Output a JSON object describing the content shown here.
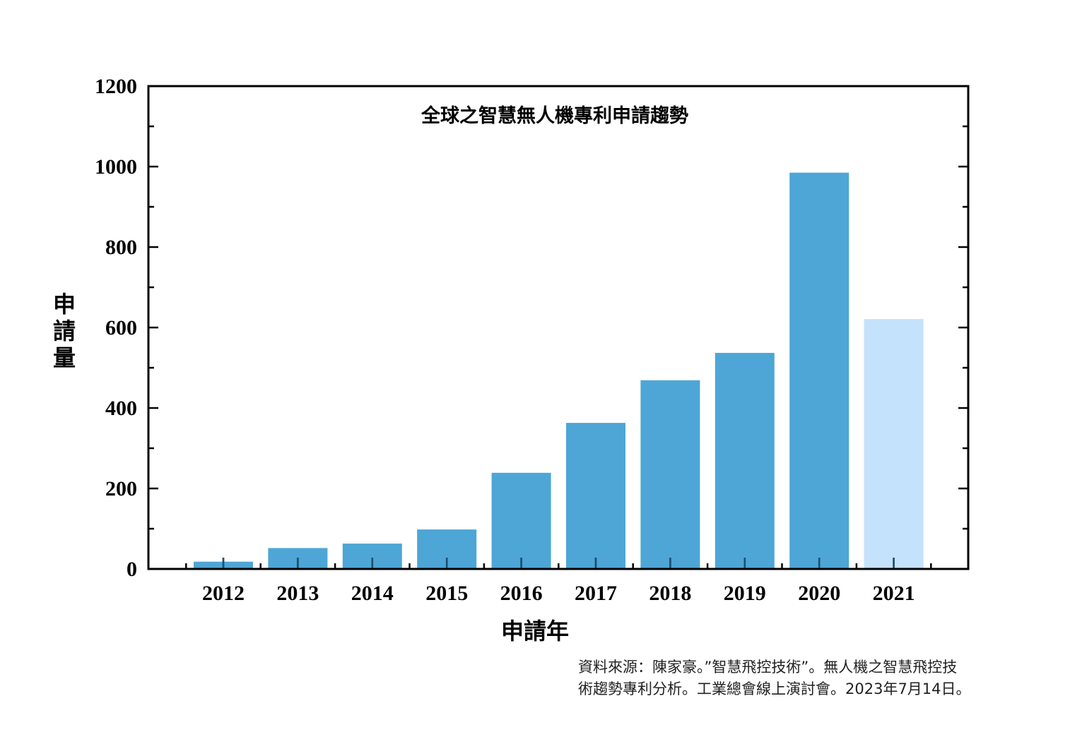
{
  "chart_data": {
    "type": "bar",
    "title": "全球之智慧無人機專利申請趨勢",
    "xlabel": "申請年",
    "ylabel": "申請量",
    "ylim": [
      0,
      1200
    ],
    "yticks": [
      "0",
      "200",
      "400",
      "600",
      "800",
      "1000",
      "1200"
    ],
    "categories": [
      "2012",
      "2013",
      "2014",
      "2015",
      "2016",
      "2017",
      "2018",
      "2019",
      "2020",
      "2021"
    ],
    "values": [
      18,
      52,
      63,
      98,
      239,
      363,
      469,
      537,
      985,
      621
    ],
    "bar_colors": [
      "#4da6d6",
      "#4da6d6",
      "#4da6d6",
      "#4da6d6",
      "#4da6d6",
      "#4da6d6",
      "#4da6d6",
      "#4da6d6",
      "#4da6d6",
      "#c4e2fb"
    ],
    "grid": false,
    "legend": "none"
  },
  "source": {
    "line1": "資料來源：陳家豪。”智慧飛控技術”。無人機之智慧飛控技",
    "line2": "術趨勢專利分析。工業總會線上演討會。2023年7月14日。"
  }
}
